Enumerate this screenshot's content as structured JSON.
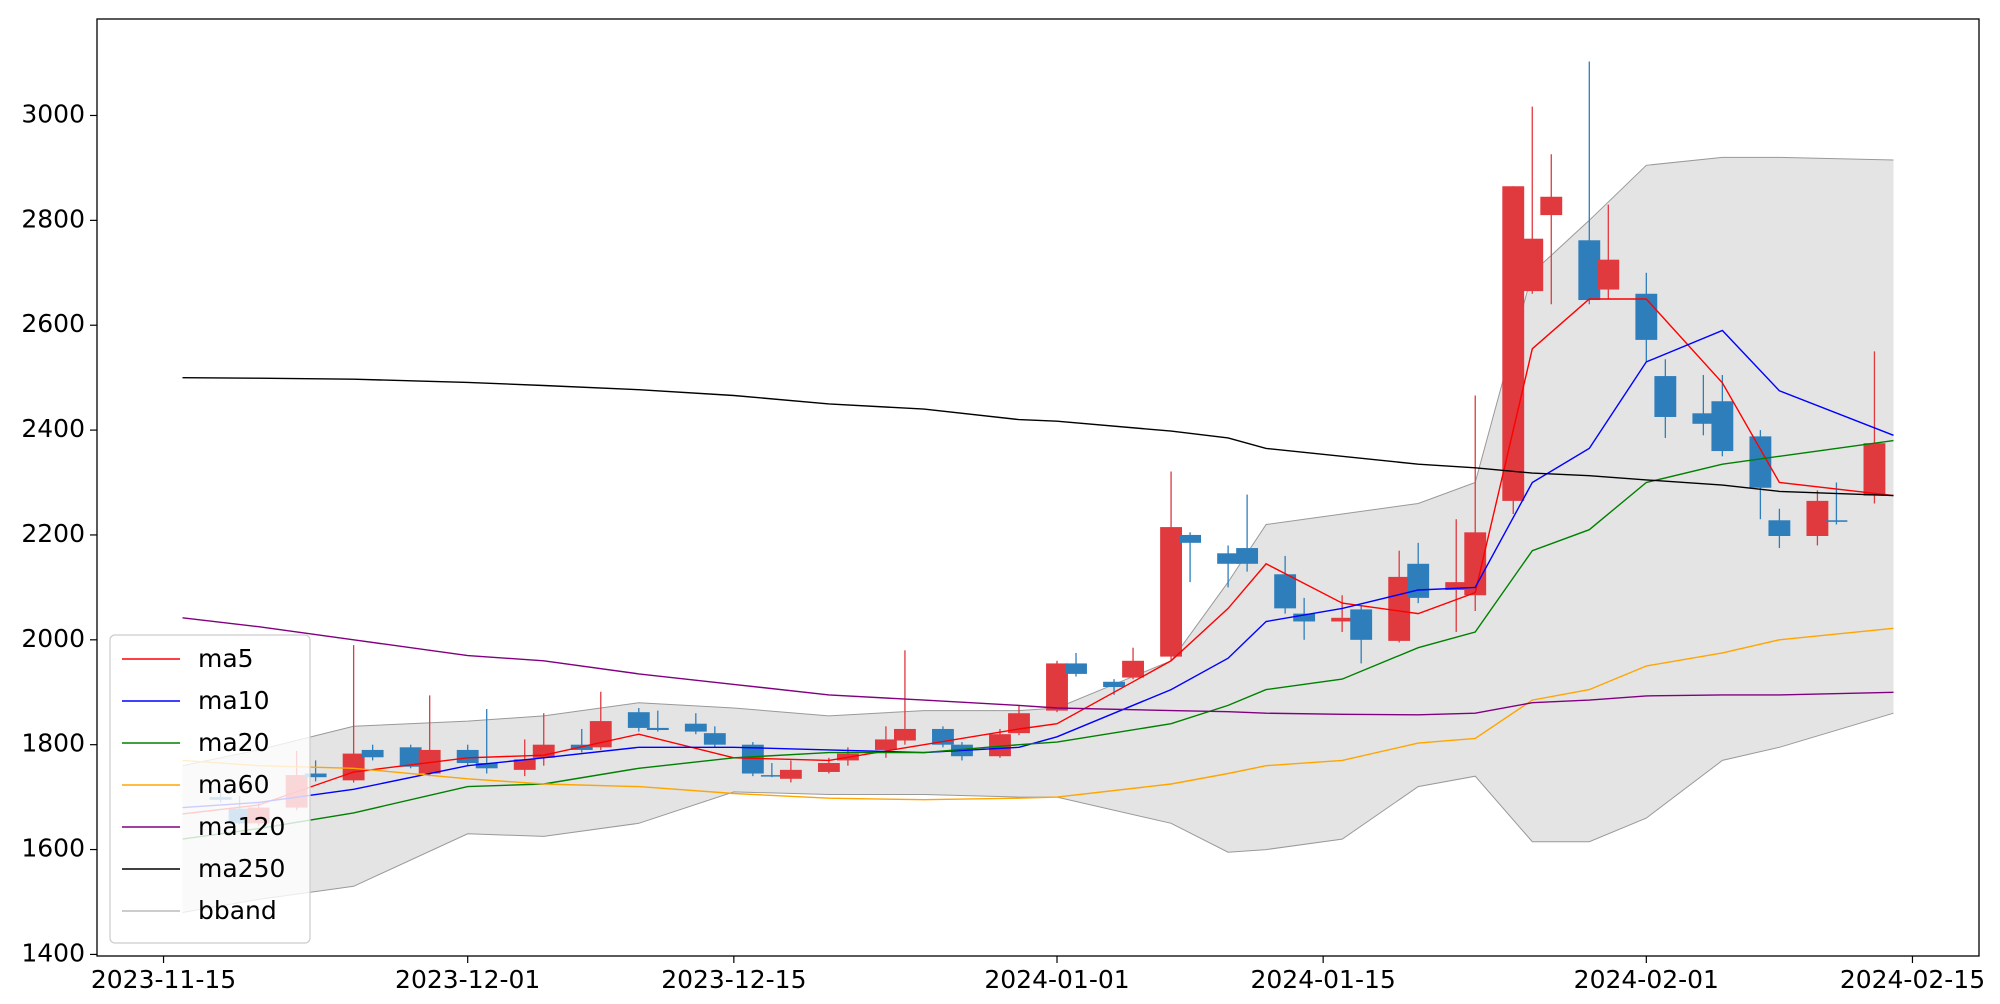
{
  "chart_data": {
    "type": "candlestick",
    "xlim": [
      "2023-11-11T12:00",
      "2024-02-18T12:00"
    ],
    "ylim": [
      1397,
      3184
    ],
    "xticks": [
      "2023-11-15",
      "2023-12-01",
      "2023-12-15",
      "2024-01-01",
      "2024-01-15",
      "2024-02-01",
      "2024-02-15"
    ],
    "yticks": [
      1400,
      1600,
      1800,
      2000,
      2200,
      2400,
      2600,
      2800,
      3000
    ],
    "legend": "lower left",
    "candles": {
      "up_color": "#e0393e",
      "down_color": "#2f7ebc",
      "x": [
        "2023-11-18",
        "2023-11-19",
        "2023-11-20",
        "2023-11-22",
        "2023-11-23",
        "2023-11-25",
        "2023-11-26",
        "2023-11-28",
        "2023-11-29",
        "2023-12-01",
        "2023-12-02",
        "2023-12-04",
        "2023-12-05",
        "2023-12-07",
        "2023-12-08",
        "2023-12-10",
        "2023-12-11",
        "2023-12-13",
        "2023-12-14",
        "2023-12-16",
        "2023-12-17",
        "2023-12-18",
        "2023-12-20",
        "2023-12-21",
        "2023-12-23",
        "2023-12-24",
        "2023-12-26",
        "2023-12-27",
        "2023-12-29",
        "2023-12-30",
        "2024-01-01",
        "2024-01-02",
        "2024-01-04",
        "2024-01-05",
        "2024-01-07",
        "2024-01-08",
        "2024-01-10",
        "2024-01-11",
        "2024-01-13",
        "2024-01-14",
        "2024-01-16",
        "2024-01-17",
        "2024-01-19",
        "2024-01-20",
        "2024-01-22",
        "2024-01-23",
        "2024-01-25",
        "2024-01-26",
        "2024-01-27",
        "2024-01-29",
        "2024-01-30",
        "2024-02-01",
        "2024-02-02",
        "2024-02-04",
        "2024-02-05",
        "2024-02-07",
        "2024-02-08",
        "2024-02-10",
        "2024-02-11",
        "2024-02-13"
      ],
      "open": [
        1700,
        1678,
        1650,
        1680,
        1745,
        1732,
        1790,
        1795,
        1745,
        1790,
        1765,
        1752,
        1775,
        1800,
        1795,
        1862,
        1832,
        1840,
        1822,
        1800,
        1742,
        1735,
        1748,
        1770,
        1790,
        1808,
        1830,
        1800,
        1778,
        1822,
        1865,
        1955,
        1920,
        1928,
        1968,
        2200,
        2165,
        2175,
        2125,
        2050,
        2035,
        2058,
        1998,
        2145,
        2095,
        2085,
        2265,
        2665,
        2810,
        2762,
        2668,
        2660,
        2503,
        2432,
        2455,
        2388,
        2228,
        2198,
        2228,
        2275
      ],
      "high": [
        1710,
        1702,
        1690,
        1788,
        1770,
        1990,
        1800,
        1800,
        1894,
        1800,
        1868,
        1810,
        1860,
        1830,
        1901,
        1870,
        1865,
        1860,
        1835,
        1805,
        1765,
        1770,
        1775,
        1795,
        1835,
        1980,
        1835,
        1805,
        1830,
        1875,
        1960,
        1975,
        1925,
        1985,
        2321,
        2205,
        2180,
        2277,
        2160,
        2080,
        2085,
        2065,
        2170,
        2185,
        2230,
        2466,
        2865,
        3017,
        2926,
        3103,
        2830,
        2700,
        2535,
        2505,
        2505,
        2400,
        2250,
        2285,
        2300,
        2550
      ],
      "low": [
        1690,
        1648,
        1645,
        1675,
        1730,
        1728,
        1770,
        1755,
        1740,
        1760,
        1745,
        1740,
        1760,
        1785,
        1790,
        1825,
        1825,
        1820,
        1795,
        1740,
        1738,
        1728,
        1745,
        1760,
        1775,
        1800,
        1795,
        1770,
        1775,
        1818,
        1862,
        1930,
        1895,
        1925,
        1960,
        2110,
        2100,
        2130,
        2050,
        2000,
        2015,
        1955,
        1995,
        2070,
        2015,
        2055,
        2240,
        2660,
        2640,
        2640,
        2650,
        2530,
        2385,
        2390,
        2350,
        2230,
        2175,
        2180,
        2220,
        2260
      ],
      "close": [
        1695,
        1650,
        1680,
        1742,
        1738,
        1783,
        1776,
        1758,
        1790,
        1765,
        1755,
        1772,
        1800,
        1790,
        1845,
        1832,
        1828,
        1825,
        1800,
        1745,
        1740,
        1752,
        1765,
        1783,
        1810,
        1830,
        1800,
        1778,
        1820,
        1860,
        1955,
        1935,
        1910,
        1960,
        2215,
        2185,
        2145,
        2145,
        2060,
        2035,
        2042,
        2000,
        2120,
        2080,
        2110,
        2205,
        2865,
        2765,
        2845,
        2648,
        2725,
        2572,
        2425,
        2412,
        2360,
        2290,
        2198,
        2265,
        2225,
        2375
      ]
    },
    "line_x": [
      "2023-11-16",
      "2023-11-20",
      "2023-11-25",
      "2023-12-01",
      "2023-12-05",
      "2023-12-10",
      "2023-12-15",
      "2023-12-20",
      "2023-12-25",
      "2023-12-30",
      "2024-01-01",
      "2024-01-07",
      "2024-01-10",
      "2024-01-12",
      "2024-01-16",
      "2024-01-20",
      "2024-01-23",
      "2024-01-26",
      "2024-01-29",
      "2024-02-01",
      "2024-02-05",
      "2024-02-08",
      "2024-02-14"
    ],
    "series": [
      {
        "name": "ma5",
        "color": "#ff0000",
        "values": [
          1668,
          1685,
          1748,
          1775,
          1780,
          1820,
          1775,
          1770,
          1800,
          1830,
          1840,
          1960,
          2060,
          2145,
          2070,
          2050,
          2090,
          2555,
          2650,
          2650,
          2490,
          2300,
          2275
        ]
      },
      {
        "name": "ma10",
        "color": "#0000ff",
        "values": [
          1680,
          1690,
          1715,
          1760,
          1775,
          1795,
          1795,
          1790,
          1785,
          1795,
          1815,
          1905,
          1965,
          2035,
          2060,
          2095,
          2100,
          2300,
          2365,
          2530,
          2590,
          2475,
          2390
        ]
      },
      {
        "name": "ma20",
        "color": "#008000",
        "values": [
          1620,
          1640,
          1670,
          1720,
          1725,
          1755,
          1775,
          1785,
          1785,
          1800,
          1805,
          1840,
          1875,
          1905,
          1925,
          1985,
          2015,
          2170,
          2210,
          2300,
          2335,
          2350,
          2380
        ]
      },
      {
        "name": "ma60",
        "color": "#ffa500",
        "values": [
          1770,
          1760,
          1755,
          1735,
          1725,
          1720,
          1707,
          1698,
          1695,
          1698,
          1700,
          1725,
          1745,
          1760,
          1770,
          1803,
          1812,
          1885,
          1905,
          1950,
          1975,
          2000,
          2022
        ]
      },
      {
        "name": "ma120",
        "color": "#800080",
        "values": [
          2042,
          2025,
          2000,
          1970,
          1960,
          1935,
          1915,
          1895,
          1885,
          1875,
          1870,
          1865,
          1863,
          1860,
          1858,
          1857,
          1860,
          1880,
          1885,
          1893,
          1895,
          1895,
          1900
        ]
      },
      {
        "name": "ma250",
        "color": "#000000",
        "values": [
          2500,
          2499,
          2497,
          2491,
          2485,
          2477,
          2466,
          2450,
          2440,
          2420,
          2417,
          2398,
          2385,
          2365,
          2350,
          2335,
          2328,
          2318,
          2313,
          2305,
          2295,
          2283,
          2275
        ]
      },
      {
        "name": "bband",
        "color": "#999999",
        "fill": "#e4e4e4",
        "upper": [
          1760,
          1790,
          1835,
          1845,
          1855,
          1880,
          1870,
          1855,
          1865,
          1865,
          1870,
          1960,
          2110,
          2220,
          2240,
          2260,
          2300,
          2700,
          2800,
          2905,
          2920,
          2920,
          2915
        ],
        "lower": [
          1480,
          1505,
          1530,
          1630,
          1625,
          1650,
          1710,
          1705,
          1705,
          1700,
          1700,
          1650,
          1595,
          1600,
          1620,
          1720,
          1740,
          1615,
          1615,
          1660,
          1770,
          1795,
          1860
        ]
      }
    ]
  }
}
